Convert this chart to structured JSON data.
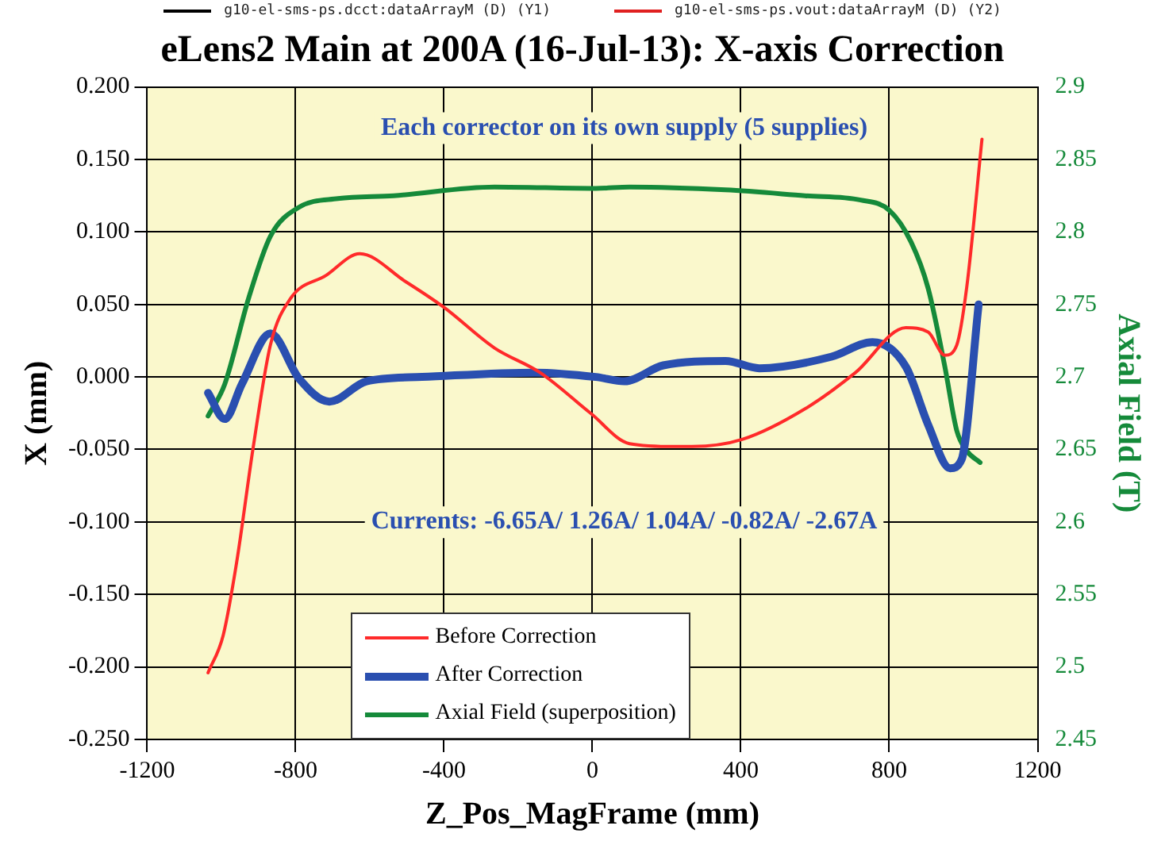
{
  "chart_data": {
    "type": "line",
    "title": "eLens2 Main at 200A (16-Jul-13): X-axis Correction",
    "xlabel": "Z_Pos_MagFrame (mm)",
    "ylabel": "X (mm)",
    "y2label": "Axial Field (T)",
    "annotations": [
      "Each corrector on its own supply (5 supplies)",
      "Currents: -6.65A/ 1.26A/ 1.04A/ -0.82A/ -2.67A",
      "g10-el-sms-ps.dcct:dataArrayM (D) (Y1)",
      "g10-el-sms-ps.vout:dataArrayM (D) (Y2)"
    ],
    "xlim": [
      -1200,
      1200
    ],
    "xticks": [
      -1200,
      -800,
      -400,
      0,
      400,
      800,
      1200
    ],
    "ylim": [
      -0.25,
      0.2
    ],
    "yticks": [
      {
        "value": -0.25,
        "label": "-0.250"
      },
      {
        "value": -0.2,
        "label": "-0.200"
      },
      {
        "value": -0.15,
        "label": "-0.150"
      },
      {
        "value": -0.1,
        "label": "-0.100"
      },
      {
        "value": -0.05,
        "label": "-0.050"
      },
      {
        "value": 0,
        "label": "0.000"
      },
      {
        "value": 0.05,
        "label": "0.050"
      },
      {
        "value": 0.1,
        "label": "0.100"
      },
      {
        "value": 0.15,
        "label": "0.150"
      },
      {
        "value": 0.2,
        "label": "0.200"
      }
    ],
    "y2lim": [
      2.45,
      2.9
    ],
    "y2ticks": [
      2.45,
      2.5,
      2.55,
      2.6,
      2.65,
      2.7,
      2.75,
      2.8,
      2.85,
      2.9
    ],
    "grid": true,
    "legend": "bottom",
    "marker": "none",
    "series": [
      {
        "name": "Before Correction",
        "color": "#ff2a2a",
        "x": [
          -1036,
          -995,
          -959,
          -914,
          -868,
          -814,
          -718,
          -627,
          -505,
          -400,
          -264,
          -141,
          -5,
          100,
          223,
          268,
          405,
          573,
          709,
          845,
          905,
          950,
          982,
          1009,
          1050
        ],
        "values": [
          -0.204,
          -0.178,
          -0.128,
          -0.048,
          0.022,
          0.054,
          0.07,
          0.085,
          0.066,
          0.048,
          0.02,
          0.003,
          -0.025,
          -0.046,
          -0.048,
          -0.048,
          -0.043,
          -0.022,
          0.003,
          0.034,
          0.031,
          0.015,
          0.022,
          0.062,
          0.164
        ]
      },
      {
        "name": "After Correction",
        "color": "#2a4fb0",
        "x": [
          -1036,
          -991,
          -945,
          -868,
          -791,
          -709,
          -609,
          -459,
          -155,
          9,
          86,
          191,
          359,
          450,
          645,
          755,
          845,
          905,
          964,
          995,
          1041
        ],
        "values": [
          -0.011,
          -0.029,
          -0.005,
          0.03,
          -0.001,
          -0.017,
          -0.003,
          0,
          0.003,
          0,
          -0.003,
          0.008,
          0.011,
          0.006,
          0.014,
          0.024,
          0.007,
          -0.033,
          -0.063,
          -0.057,
          0.05
        ]
      },
      {
        "name": "Axial Field (superposition)",
        "color": "#158a3a",
        "axis": "y2",
        "x": [
          -1036,
          -991,
          -927,
          -868,
          -791,
          -686,
          -536,
          -264,
          9,
          100,
          359,
          573,
          723,
          800,
          859,
          905,
          950,
          982,
          1009,
          1045
        ],
        "values": [
          2.673,
          2.695,
          2.754,
          2.797,
          2.817,
          2.823,
          2.825,
          2.831,
          2.83,
          2.831,
          2.829,
          2.825,
          2.822,
          2.815,
          2.793,
          2.761,
          2.707,
          2.663,
          2.649,
          2.641
        ]
      }
    ]
  }
}
